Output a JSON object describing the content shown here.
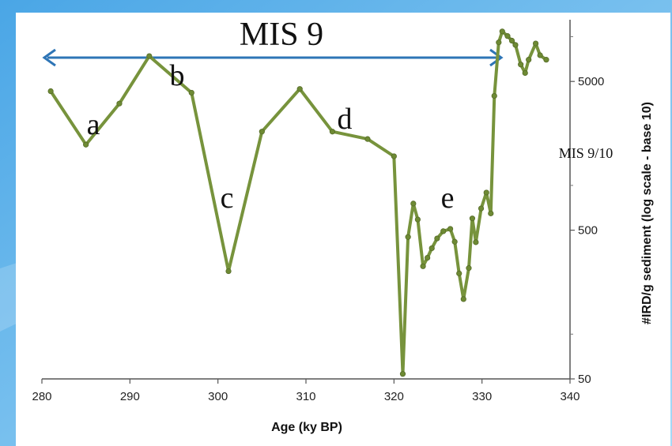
{
  "chart_data": {
    "type": "line",
    "xlabel": "Age (ky BP)",
    "ylabel": "#IRD/g sediment (log scale - base 10)",
    "xlim": [
      280,
      340
    ],
    "ylim": [
      50,
      13000
    ],
    "yscale": "log10",
    "xticks": [
      "280",
      "290",
      "300",
      "310",
      "320",
      "330",
      "340"
    ],
    "yticks": [
      "50",
      "500",
      "5000"
    ],
    "y_axis_side": "right",
    "grid": false,
    "line_color": "#77933c",
    "arrow_color": "#2e75b6",
    "series": [
      {
        "x": [
          281,
          285,
          288.8,
          292.2,
          297,
          301.2,
          305,
          309.3,
          313,
          317,
          320,
          321,
          321.6,
          322.2,
          322.7,
          323.3,
          323.8,
          324.3,
          324.9,
          325.6,
          326.4,
          326.9,
          327.4,
          327.9,
          328.5,
          328.9,
          329.3,
          329.9,
          330.5,
          331.0,
          331.4,
          331.9,
          332.3,
          332.9,
          333.4,
          333.8,
          334.4,
          334.9,
          335.3,
          336.1,
          336.6,
          337.3
        ],
        "y": [
          4300,
          1880,
          3550,
          7400,
          4200,
          265,
          2300,
          4450,
          2300,
          2050,
          1570,
          54,
          450,
          755,
          590,
          286,
          326,
          378,
          440,
          492,
          510,
          418,
          256,
          172,
          278,
          600,
          415,
          700,
          895,
          648,
          4000,
          9150,
          10850,
          10100,
          9400,
          8800,
          6500,
          5700,
          7000,
          9000,
          7500,
          7000
        ]
      }
    ],
    "annotations": {
      "a": "a",
      "b": "b",
      "c": "c",
      "d": "d",
      "e": "e",
      "mis9": "MIS 9",
      "mis910": "MIS 9/10"
    }
  }
}
